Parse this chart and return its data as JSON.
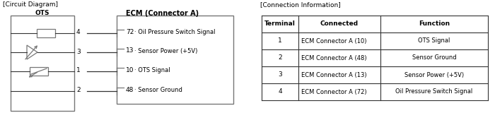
{
  "title_left": "[Circuit Diagram]",
  "title_right": "[Connection Information]",
  "ots_label": "OTS",
  "ecm_label": "ECM (Connector A)",
  "ecm_entries": [
    {
      "num": "72",
      "label": "· Oil Pressure Switch Signal"
    },
    {
      "num": "13",
      "label": "· Sensor Power (+5V)"
    },
    {
      "num": "10",
      "label": "· OTS Signal"
    },
    {
      "num": "48",
      "label": "· Sensor Ground"
    }
  ],
  "pin_nums_ots": [
    "4",
    "3",
    "1",
    "2"
  ],
  "table_headers": [
    "Terminal",
    "Connected",
    "Function"
  ],
  "table_rows": [
    [
      "1",
      "ECM Connector A (10)",
      "OTS Signal"
    ],
    [
      "2",
      "ECM Connector A (48)",
      "Sensor Ground"
    ],
    [
      "3",
      "ECM Connector A (13)",
      "Sensor Power (+5V)"
    ],
    [
      "4",
      "ECM Connector A (72)",
      "Oil Pressure Switch Signal"
    ]
  ],
  "bg_color": "#ffffff",
  "text_color": "#000000",
  "line_color": "#333333",
  "font_size": 6.5
}
